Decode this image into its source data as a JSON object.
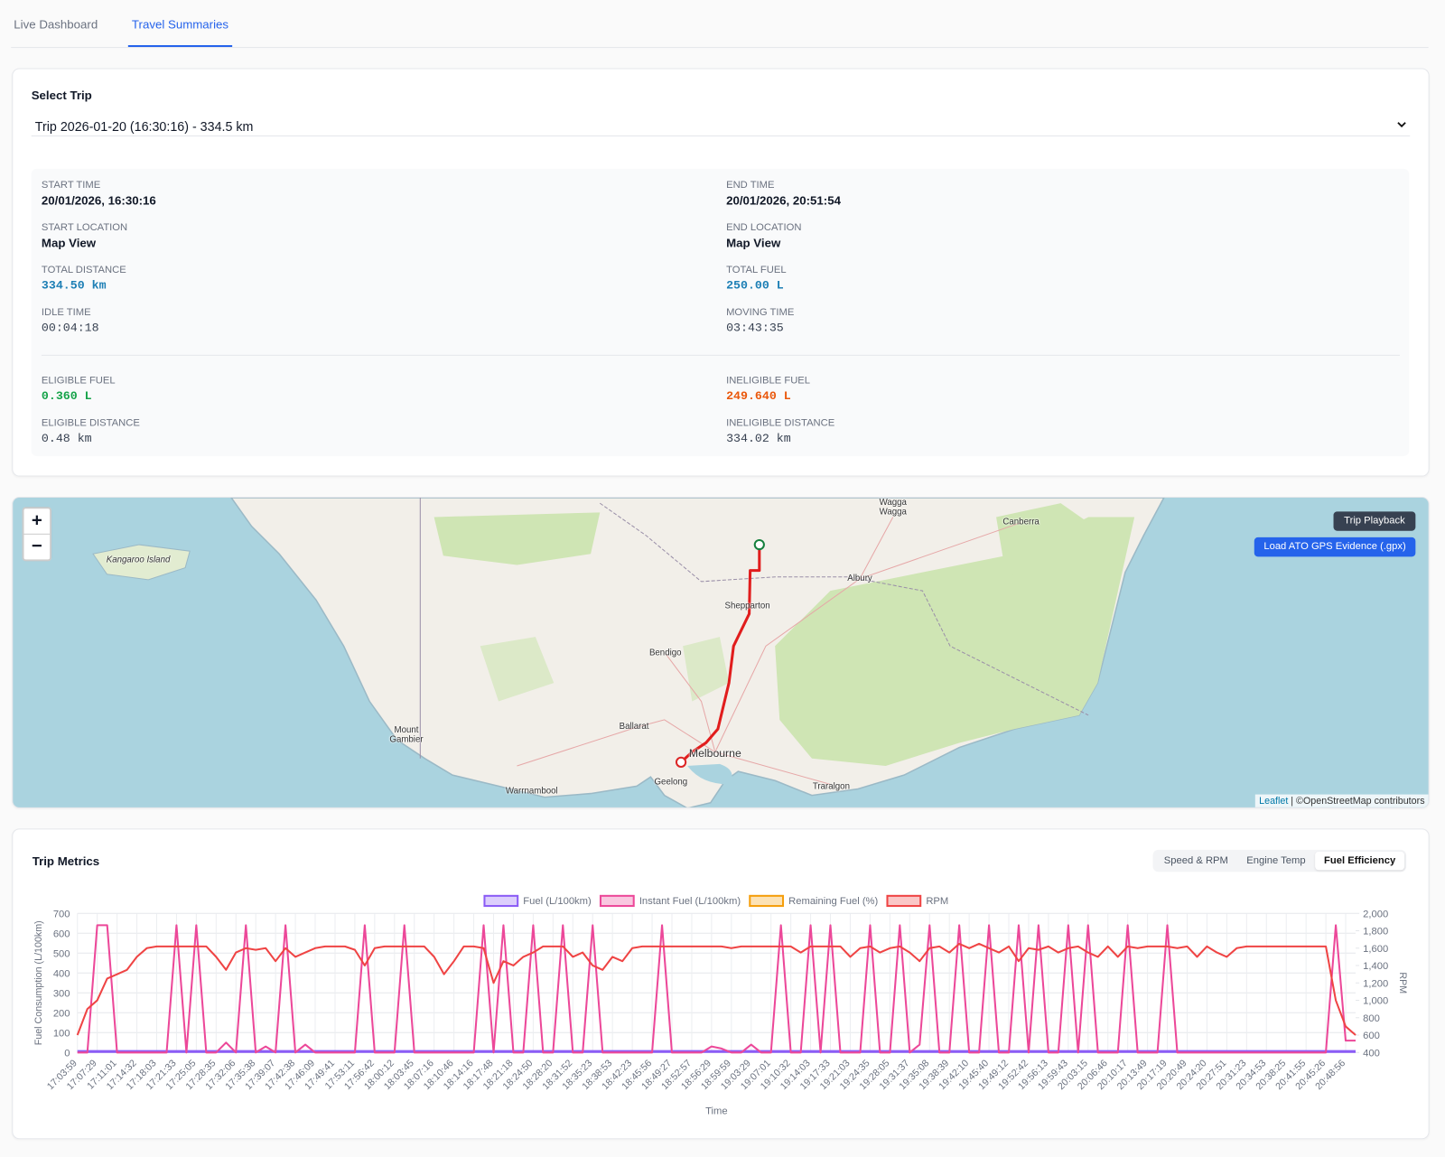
{
  "tabs": [
    "Live Dashboard",
    "Travel Summaries"
  ],
  "active_tab": 1,
  "trip_selector": {
    "label": "Select Trip",
    "selected": "Trip 2026-01-20 (16:30:16) - 334.5 km"
  },
  "trip_details": {
    "fields": [
      {
        "label": "START TIME",
        "value": "20/01/2026, 16:30:16"
      },
      {
        "label": "END TIME",
        "value": "20/01/2026, 20:51:54"
      },
      {
        "label": "START LOCATION",
        "value": "Map View"
      },
      {
        "label": "END LOCATION",
        "value": "Map View"
      },
      {
        "label": "TOTAL DISTANCE",
        "value": "334.50 km"
      },
      {
        "label": "TOTAL FUEL",
        "value": "250.00 L"
      },
      {
        "label": "IDLE TIME",
        "value": "00:04:18"
      },
      {
        "label": "MOVING TIME",
        "value": "03:43:35"
      }
    ],
    "fuel_split": [
      {
        "label": "ELIGIBLE FUEL",
        "value": "0.360 L"
      },
      {
        "label": "INELIGIBLE FUEL",
        "value": "249.640 L"
      },
      {
        "label": "ELIGIBLE DISTANCE",
        "value": "0.48 km"
      },
      {
        "label": "INELIGIBLE DISTANCE",
        "value": "334.02 km"
      }
    ]
  },
  "map": {
    "zoom_in": "+",
    "zoom_out": "−",
    "buttons": [
      "Trip Playback",
      "Load ATO GPS Evidence (.gpx)"
    ],
    "attribution": {
      "link": "Leaflet",
      "text": " | ©OpenStreetMap contributors"
    },
    "labels": [
      "Kangaroo Island",
      "Wagga Wagga",
      "Canberra",
      "Albury",
      "Shepparton",
      "Bendigo",
      "Ballarat",
      "Mount Gambier",
      "Melbourne",
      "Geelong",
      "Warrnambool",
      "Traralgon"
    ]
  },
  "metrics": {
    "title": "Trip Metrics",
    "views": [
      "Speed & RPM",
      "Engine Temp",
      "Fuel Efficiency"
    ],
    "active_view": 2
  },
  "chart_data": {
    "type": "line",
    "xlabel": "Time",
    "ylabel": "Fuel Consumption (L/100km)",
    "y2label": "RPM",
    "legend": "top",
    "grid": true,
    "categories": [
      "17:03:59",
      null,
      "17:07:29",
      null,
      "17:11:01",
      null,
      "17:14:32",
      null,
      "17:18:03",
      null,
      "17:21:33",
      null,
      "17:25:05",
      null,
      "17:28:35",
      null,
      "17:32:06",
      null,
      "17:35:38",
      null,
      "17:39:07",
      null,
      "17:42:38",
      null,
      "17:46:09",
      null,
      "17:49:41",
      null,
      "17:53:11",
      null,
      "17:56:42",
      null,
      "18:00:12",
      null,
      "18:03:45",
      null,
      "18:07:16",
      null,
      "18:10:46",
      null,
      "18:14:16",
      null,
      "18:17:48",
      null,
      "18:21:18",
      null,
      "18:24:50",
      null,
      "18:28:20",
      null,
      "18:31:52",
      null,
      "18:35:23",
      null,
      "18:38:53",
      null,
      "18:42:23",
      null,
      "18:45:56",
      null,
      "18:49:27",
      null,
      "18:52:57",
      null,
      "18:56:29",
      null,
      "18:59:59",
      null,
      "19:03:29",
      null,
      "19:07:01",
      null,
      "19:10:32",
      null,
      "19:14:03",
      null,
      "19:17:33",
      null,
      "19:21:03",
      null,
      "19:24:35",
      null,
      "19:28:05",
      null,
      "19:31:37",
      null,
      "19:35:08",
      null,
      "19:38:39",
      null,
      "19:42:10",
      null,
      "19:45:40",
      null,
      "19:49:12",
      null,
      "19:52:42",
      null,
      "19:56:13",
      null,
      "19:59:43",
      null,
      "20:03:15",
      null,
      "20:06:46",
      null,
      "20:10:17",
      null,
      "20:13:49",
      null,
      "20:17:19",
      null,
      "20:20:49",
      null,
      "20:24:20",
      null,
      "20:27:51",
      null,
      "20:31:23",
      null,
      "20:34:53",
      null,
      "20:38:25",
      null,
      "20:41:55",
      null,
      "20:45:26",
      null,
      "20:48:56",
      null
    ],
    "series": [
      {
        "name": "Fuel (L/100km)",
        "color": "#8b5cf6",
        "values": [
          5,
          5,
          5,
          5,
          5,
          5,
          5,
          5,
          5,
          5,
          5,
          5,
          5,
          5,
          5,
          5,
          5,
          5,
          5,
          5,
          5,
          5,
          5,
          5,
          5,
          5,
          5,
          5,
          5,
          5,
          5,
          5,
          5,
          5,
          5,
          5,
          5,
          5,
          5,
          5,
          5,
          5,
          5,
          5,
          5,
          5,
          5,
          5,
          5,
          5,
          5,
          5,
          5,
          5,
          5,
          5,
          5,
          5,
          5,
          5,
          5,
          5,
          5,
          5,
          5,
          5,
          5,
          5,
          5,
          5,
          5,
          5,
          5,
          5,
          5,
          5,
          5,
          5,
          5,
          5,
          5,
          5,
          5,
          5,
          5,
          5,
          5,
          5,
          5,
          5,
          5,
          5,
          5,
          5,
          5,
          5,
          5,
          5,
          5,
          5,
          5,
          5,
          5,
          5,
          5,
          5,
          5,
          5,
          5,
          5,
          5,
          5,
          5,
          5,
          5,
          5,
          5,
          5,
          5,
          5,
          5,
          5,
          5,
          5,
          5,
          5,
          5,
          5,
          5,
          5
        ]
      },
      {
        "name": "Instant Fuel (L/100km)",
        "color": "#ec4899",
        "values": [
          0,
          0,
          640,
          640,
          0,
          0,
          0,
          0,
          0,
          0,
          640,
          0,
          640,
          0,
          0,
          50,
          0,
          640,
          0,
          30,
          0,
          640,
          0,
          40,
          0,
          0,
          0,
          0,
          0,
          640,
          0,
          0,
          0,
          640,
          0,
          0,
          0,
          0,
          0,
          0,
          0,
          640,
          0,
          640,
          0,
          0,
          640,
          0,
          0,
          640,
          0,
          0,
          640,
          0,
          0,
          0,
          0,
          0,
          0,
          640,
          0,
          0,
          0,
          0,
          30,
          20,
          0,
          0,
          40,
          0,
          0,
          640,
          0,
          0,
          640,
          0,
          640,
          0,
          0,
          0,
          640,
          0,
          0,
          640,
          0,
          40,
          640,
          0,
          0,
          640,
          0,
          0,
          640,
          0,
          0,
          640,
          0,
          640,
          0,
          0,
          640,
          0,
          640,
          0,
          0,
          0,
          640,
          0,
          0,
          0,
          640,
          0,
          0,
          0,
          0,
          0,
          0,
          0,
          0,
          0,
          0,
          0,
          0,
          0,
          0,
          0,
          0,
          640,
          60,
          60
        ]
      },
      {
        "name": "Remaining Fuel (%)",
        "color": "#f59e0b",
        "values": [
          null,
          null,
          null,
          null,
          null,
          null,
          null,
          null,
          null,
          null,
          null,
          null,
          null,
          null,
          null,
          null,
          null,
          null,
          null,
          null,
          null,
          null,
          null,
          null,
          null,
          null,
          null,
          null,
          null,
          null,
          null,
          null,
          null,
          null,
          null,
          null,
          null,
          null,
          null,
          null,
          null,
          null,
          null,
          null,
          null,
          null,
          null,
          null,
          null,
          null,
          null,
          null,
          null,
          null,
          null,
          null,
          null,
          null,
          null,
          null,
          null,
          null,
          null,
          null,
          null,
          null,
          null,
          null,
          null,
          null,
          null,
          null,
          null,
          null,
          null,
          null,
          null,
          null,
          null,
          null,
          null,
          null,
          null,
          null,
          null,
          null,
          null,
          null,
          null,
          null,
          null,
          null,
          null,
          null,
          null,
          null,
          null,
          null,
          null,
          null,
          null,
          null,
          null,
          null,
          null,
          null,
          null,
          null,
          null,
          null,
          null,
          null,
          null,
          null,
          null,
          null,
          null,
          null,
          null,
          null,
          null,
          null,
          null,
          null,
          null,
          null,
          null,
          null,
          null,
          null
        ]
      },
      {
        "name": "RPM",
        "color": "#ef4444",
        "axis": "y2",
        "values": [
          600,
          900,
          1000,
          1250,
          1300,
          1350,
          1500,
          1600,
          1620,
          1620,
          1620,
          1620,
          1620,
          1620,
          1500,
          1350,
          1550,
          1600,
          1580,
          1600,
          1450,
          1600,
          1500,
          1550,
          1600,
          1620,
          1620,
          1620,
          1580,
          1400,
          1600,
          1620,
          1620,
          1620,
          1620,
          1620,
          1500,
          1300,
          1450,
          1620,
          1620,
          1600,
          1200,
          1450,
          1400,
          1500,
          1550,
          1620,
          1620,
          1620,
          1500,
          1550,
          1400,
          1350,
          1500,
          1450,
          1600,
          1620,
          1620,
          1620,
          1620,
          1620,
          1620,
          1620,
          1620,
          1620,
          1600,
          1620,
          1620,
          1620,
          1620,
          1620,
          1620,
          1550,
          1620,
          1620,
          1620,
          1620,
          1500,
          1600,
          1620,
          1550,
          1600,
          1620,
          1550,
          1450,
          1600,
          1620,
          1550,
          1650,
          1600,
          1650,
          1600,
          1550,
          1620,
          1450,
          1600,
          1580,
          1620,
          1550,
          1600,
          1620,
          1550,
          1500,
          1620,
          1500,
          1620,
          1600,
          1620,
          1620,
          1620,
          1600,
          1620,
          1500,
          1620,
          1550,
          1500,
          1600,
          1620,
          1620,
          1620,
          1620,
          1620,
          1620,
          1620,
          1620,
          1620,
          1000,
          700,
          600
        ]
      }
    ],
    "ylim": [
      0,
      700
    ],
    "yticks": [
      0,
      100,
      200,
      300,
      400,
      500,
      600,
      700
    ],
    "y2lim": [
      400,
      2000
    ],
    "y2ticks": [
      400,
      600,
      800,
      {
        "value": 1000,
        "label": "1,000"
      },
      {
        "value": 1200,
        "label": "1,200"
      },
      {
        "value": 1400,
        "label": "1,400"
      },
      {
        "value": 1600,
        "label": "1,600"
      },
      {
        "value": 1800,
        "label": "1,800"
      },
      {
        "value": 2000,
        "label": "2,000"
      }
    ]
  }
}
